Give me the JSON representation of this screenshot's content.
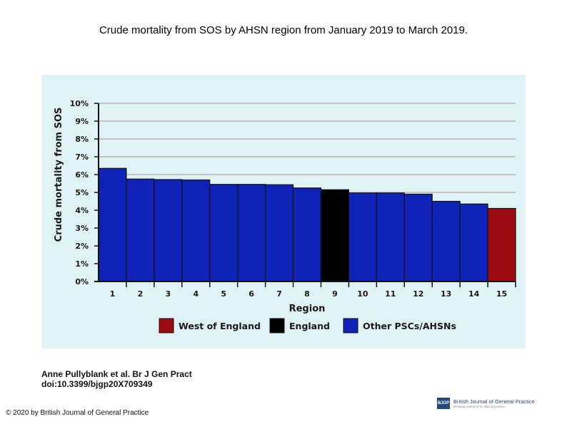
{
  "header": {
    "title": "Crude mortality from SOS by AHSN region from January 2019 to March 2019."
  },
  "chart_data": {
    "type": "bar",
    "title": "",
    "xlabel": "Region",
    "ylabel": "Crude mortality from SOS",
    "categories": [
      "1",
      "2",
      "3",
      "4",
      "5",
      "6",
      "7",
      "8",
      "9",
      "10",
      "11",
      "12",
      "13",
      "14",
      "15"
    ],
    "values": [
      6.35,
      5.75,
      5.72,
      5.7,
      5.45,
      5.45,
      5.43,
      5.25,
      5.15,
      4.97,
      4.97,
      4.9,
      4.5,
      4.35,
      4.1
    ],
    "groups": [
      "Other PSCs/AHSNs",
      "Other PSCs/AHSNs",
      "Other PSCs/AHSNs",
      "Other PSCs/AHSNs",
      "Other PSCs/AHSNs",
      "Other PSCs/AHSNs",
      "Other PSCs/AHSNs",
      "Other PSCs/AHSNs",
      "England",
      "Other PSCs/AHSNs",
      "Other PSCs/AHSNs",
      "Other PSCs/AHSNs",
      "Other PSCs/AHSNs",
      "Other PSCs/AHSNs",
      "West of England"
    ],
    "ylim": [
      0,
      10
    ],
    "yticks": [
      "0%",
      "1%",
      "2%",
      "3%",
      "4%",
      "5%",
      "6%",
      "7%",
      "8%",
      "9%",
      "10%"
    ],
    "grid": true,
    "legend_position": "bottom",
    "legend": [
      {
        "name": "West of England",
        "color": "#9b0b12"
      },
      {
        "name": "England",
        "color": "#000000"
      },
      {
        "name": "Other PSCs/AHSNs",
        "color": "#0e22b8"
      }
    ],
    "colors": {
      "panel": "#dff3f6",
      "grid": "#c4c4c4"
    }
  },
  "footer": {
    "citation_line1": "Anne Pullyblank et al. Br J Gen Pract",
    "citation_line2": "doi:10.3399/bjgp20X709349",
    "copyright": "© 2020 by British Journal of General Practice",
    "journal_logo_text": "BJGP",
    "journal_name": "British Journal of General Practice",
    "journal_tagline": "Bringing research to clinical practice"
  }
}
